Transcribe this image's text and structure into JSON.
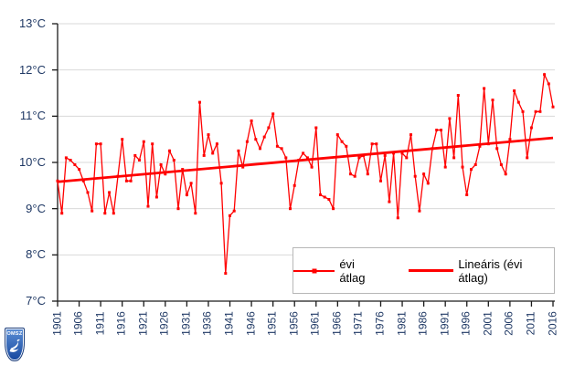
{
  "axes": {
    "y_ticks": [
      "13°C",
      "12°C",
      "11°C",
      "10°C",
      "9°C",
      "8°C",
      "7°C"
    ],
    "x_ticks": [
      "1901",
      "1906",
      "1911",
      "1916",
      "1921",
      "1926",
      "1931",
      "1936",
      "1941",
      "1946",
      "1951",
      "1956",
      "1961",
      "1966",
      "1971",
      "1976",
      "1981",
      "1986",
      "1991",
      "1996",
      "2001",
      "2006",
      "2011",
      "2016"
    ]
  },
  "legend": {
    "series1_label": "évi átlag",
    "series2_label": "Lineáris (évi átlag)"
  },
  "logo": {
    "text": "OMSZ"
  },
  "colors": {
    "series": "#FF0000",
    "trend": "#FF0000",
    "grid": "#D9D9D9",
    "axis": "#1A1A1A",
    "tick_label": "#1F3864"
  },
  "chart_data": {
    "type": "line",
    "title": "",
    "xlabel": "",
    "ylabel": "",
    "ylim": [
      7,
      13
    ],
    "grid": "horizontal",
    "legend_position": "bottom-right-inside",
    "x": [
      1901,
      1902,
      1903,
      1904,
      1905,
      1906,
      1907,
      1908,
      1909,
      1910,
      1911,
      1912,
      1913,
      1914,
      1915,
      1916,
      1917,
      1918,
      1919,
      1920,
      1921,
      1922,
      1923,
      1924,
      1925,
      1926,
      1927,
      1928,
      1929,
      1930,
      1931,
      1932,
      1933,
      1934,
      1935,
      1936,
      1937,
      1938,
      1939,
      1940,
      1941,
      1942,
      1943,
      1944,
      1945,
      1946,
      1947,
      1948,
      1949,
      1950,
      1951,
      1952,
      1953,
      1954,
      1955,
      1956,
      1957,
      1958,
      1959,
      1960,
      1961,
      1962,
      1963,
      1964,
      1965,
      1966,
      1967,
      1968,
      1969,
      1970,
      1971,
      1972,
      1973,
      1974,
      1975,
      1976,
      1977,
      1978,
      1979,
      1980,
      1981,
      1982,
      1983,
      1984,
      1985,
      1986,
      1987,
      1988,
      1989,
      1990,
      1991,
      1992,
      1993,
      1994,
      1995,
      1996,
      1997,
      1998,
      1999,
      2000,
      2001,
      2002,
      2003,
      2004,
      2005,
      2006,
      2007,
      2008,
      2009,
      2010,
      2011,
      2012,
      2013,
      2014,
      2015,
      2016
    ],
    "series": [
      {
        "name": "évi átlag",
        "style": "thin-line-with-square-markers",
        "values": [
          9.6,
          8.9,
          10.1,
          10.05,
          9.95,
          9.85,
          9.6,
          9.35,
          8.95,
          10.4,
          10.4,
          8.9,
          9.35,
          8.9,
          9.7,
          10.5,
          9.6,
          9.6,
          10.15,
          10.05,
          10.45,
          9.05,
          10.4,
          9.25,
          9.95,
          9.75,
          10.25,
          10.05,
          9.0,
          9.85,
          9.3,
          9.55,
          8.9,
          11.3,
          10.15,
          10.6,
          10.2,
          10.4,
          9.55,
          7.6,
          8.85,
          8.95,
          10.25,
          9.9,
          10.45,
          10.9,
          10.5,
          10.3,
          10.55,
          10.75,
          11.05,
          10.35,
          10.3,
          10.1,
          9.0,
          9.5,
          10.05,
          10.2,
          10.1,
          9.9,
          10.75,
          9.3,
          9.25,
          9.2,
          9.0,
          10.6,
          10.45,
          10.35,
          9.75,
          9.7,
          10.1,
          10.15,
          9.75,
          10.4,
          10.4,
          9.6,
          10.15,
          9.15,
          10.2,
          8.8,
          10.2,
          10.1,
          10.6,
          9.7,
          8.95,
          9.75,
          9.55,
          10.3,
          10.7,
          10.7,
          9.9,
          10.95,
          10.1,
          11.45,
          9.9,
          9.3,
          9.85,
          9.95,
          10.35,
          11.6,
          10.4,
          11.35,
          10.3,
          9.95,
          9.75,
          10.5,
          11.55,
          11.3,
          11.1,
          10.1,
          10.75,
          11.1,
          11.1,
          11.9,
          11.7,
          11.2
        ]
      },
      {
        "name": "Lineáris (évi átlag)",
        "style": "thick-line",
        "trend": {
          "x_start": 1901,
          "y_start": 9.58,
          "x_end": 2016,
          "y_end": 10.53
        }
      }
    ]
  }
}
